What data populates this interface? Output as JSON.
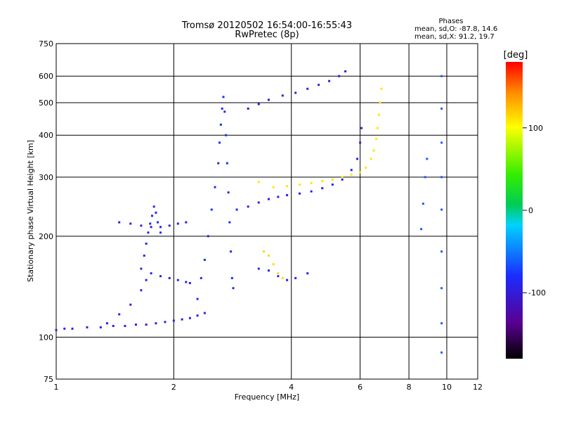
{
  "chart_data": {
    "type": "scatter",
    "title": "Tromsø 20120502 16:54:00-16:55:43",
    "subtitle": "RwPretec (8p)",
    "xlabel": "Frequency [MHz]",
    "ylabel": "Stationary phase Virtual Height [km]",
    "x_scale": "log",
    "y_scale": "log",
    "xlim": [
      1,
      12
    ],
    "ylim": [
      75,
      750
    ],
    "x_ticks": [
      1,
      2,
      4,
      6,
      8,
      10,
      12
    ],
    "y_ticks": [
      75,
      100,
      200,
      300,
      400,
      500,
      600,
      750
    ],
    "grid": true,
    "stats": {
      "heading": "Phases",
      "line_o": "mean, sd,O: -87.8, 14.6",
      "line_x": "mean, sd,X:  91.2, 19.7"
    },
    "colorbar": {
      "label": "[deg]",
      "range": [
        -180,
        180
      ],
      "ticks": [
        100,
        0,
        -100
      ],
      "tick_labels": [
        "100",
        "0",
        "-100"
      ]
    },
    "series": [
      {
        "phase_deg": -95,
        "points": [
          [
            1.0,
            105
          ],
          [
            1.05,
            106
          ],
          [
            1.1,
            106
          ],
          [
            1.2,
            107
          ],
          [
            1.3,
            107
          ],
          [
            1.4,
            108
          ],
          [
            1.5,
            108
          ],
          [
            1.6,
            109
          ],
          [
            1.7,
            109
          ],
          [
            1.8,
            110
          ],
          [
            1.9,
            111
          ],
          [
            2.0,
            112
          ],
          [
            2.1,
            113
          ],
          [
            2.2,
            114
          ],
          [
            2.3,
            116
          ],
          [
            2.4,
            118
          ]
        ]
      },
      {
        "phase_deg": -90,
        "points": [
          [
            1.35,
            110
          ],
          [
            1.45,
            117
          ],
          [
            1.55,
            125
          ],
          [
            1.65,
            138
          ],
          [
            1.7,
            148
          ],
          [
            1.75,
            155
          ],
          [
            1.85,
            152
          ],
          [
            1.95,
            150
          ],
          [
            2.05,
            148
          ],
          [
            2.15,
            146
          ],
          [
            2.2,
            145
          ]
        ]
      },
      {
        "phase_deg": -85,
        "points": [
          [
            1.65,
            160
          ],
          [
            1.68,
            175
          ],
          [
            1.7,
            190
          ],
          [
            1.72,
            205
          ],
          [
            1.74,
            218
          ],
          [
            1.76,
            230
          ],
          [
            1.78,
            245
          ],
          [
            1.8,
            235
          ],
          [
            1.82,
            220
          ],
          [
            1.85,
            205
          ]
        ]
      },
      {
        "phase_deg": -95,
        "points": [
          [
            1.45,
            220
          ],
          [
            1.55,
            218
          ],
          [
            1.65,
            215
          ],
          [
            1.75,
            213
          ],
          [
            1.85,
            213
          ],
          [
            1.95,
            215
          ],
          [
            2.05,
            218
          ],
          [
            2.15,
            220
          ]
        ]
      },
      {
        "phase_deg": -80,
        "points": [
          [
            2.3,
            130
          ],
          [
            2.35,
            150
          ],
          [
            2.4,
            170
          ],
          [
            2.45,
            200
          ],
          [
            2.5,
            240
          ],
          [
            2.55,
            280
          ],
          [
            2.6,
            330
          ],
          [
            2.62,
            380
          ],
          [
            2.64,
            430
          ],
          [
            2.66,
            480
          ],
          [
            2.68,
            520
          ],
          [
            2.7,
            470
          ],
          [
            2.72,
            400
          ],
          [
            2.74,
            330
          ],
          [
            2.76,
            270
          ],
          [
            2.78,
            220
          ],
          [
            2.8,
            180
          ],
          [
            2.82,
            150
          ],
          [
            2.84,
            140
          ]
        ]
      },
      {
        "phase_deg": -95,
        "points": [
          [
            2.9,
            240
          ],
          [
            3.1,
            245
          ],
          [
            3.3,
            252
          ],
          [
            3.5,
            258
          ],
          [
            3.7,
            262
          ],
          [
            3.9,
            265
          ],
          [
            4.2,
            268
          ],
          [
            4.5,
            272
          ],
          [
            4.8,
            278
          ],
          [
            5.1,
            285
          ],
          [
            5.4,
            295
          ],
          [
            5.7,
            315
          ],
          [
            5.9,
            340
          ],
          [
            6.0,
            380
          ],
          [
            6.05,
            420
          ]
        ]
      },
      {
        "phase_deg": 110,
        "points": [
          [
            3.3,
            290
          ],
          [
            3.6,
            280
          ],
          [
            3.9,
            282
          ],
          [
            4.2,
            285
          ],
          [
            4.5,
            288
          ],
          [
            4.8,
            292
          ],
          [
            5.1,
            295
          ],
          [
            5.4,
            300
          ],
          [
            5.7,
            305
          ],
          [
            6.0,
            310
          ],
          [
            6.2,
            320
          ],
          [
            6.4,
            340
          ],
          [
            6.5,
            360
          ],
          [
            6.6,
            390
          ],
          [
            6.65,
            420
          ],
          [
            6.7,
            460
          ],
          [
            6.75,
            500
          ],
          [
            6.8,
            550
          ]
        ]
      },
      {
        "phase_deg": -100,
        "points": [
          [
            3.1,
            480
          ],
          [
            3.3,
            495
          ],
          [
            3.5,
            510
          ],
          [
            3.8,
            525
          ],
          [
            4.1,
            535
          ],
          [
            4.4,
            550
          ],
          [
            4.7,
            565
          ],
          [
            5.0,
            580
          ],
          [
            5.3,
            600
          ],
          [
            5.5,
            620
          ]
        ]
      },
      {
        "phase_deg": 115,
        "points": [
          [
            3.4,
            180
          ],
          [
            3.5,
            175
          ],
          [
            3.6,
            165
          ],
          [
            3.7,
            155
          ],
          [
            3.8,
            150
          ],
          [
            3.9,
            148
          ]
        ]
      },
      {
        "phase_deg": -85,
        "points": [
          [
            3.3,
            160
          ],
          [
            3.5,
            158
          ],
          [
            3.7,
            152
          ],
          [
            3.9,
            148
          ],
          [
            4.1,
            150
          ],
          [
            4.4,
            155
          ]
        ]
      },
      {
        "phase_deg": -60,
        "points": [
          [
            8.6,
            210
          ],
          [
            8.7,
            250
          ],
          [
            8.8,
            300
          ],
          [
            8.9,
            340
          ],
          [
            9.7,
            600
          ],
          [
            9.7,
            480
          ],
          [
            9.7,
            380
          ],
          [
            9.7,
            300
          ],
          [
            9.7,
            240
          ],
          [
            9.7,
            180
          ],
          [
            9.7,
            140
          ],
          [
            9.7,
            110
          ],
          [
            9.7,
            90
          ]
        ]
      }
    ]
  }
}
